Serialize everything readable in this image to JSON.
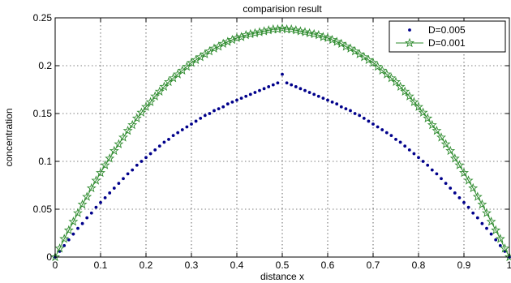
{
  "chart_data": {
    "type": "line",
    "title": "comparision result",
    "xlabel": "distance x",
    "ylabel": "concentration",
    "xlim": [
      0,
      1
    ],
    "ylim": [
      0,
      0.25
    ],
    "x_ticks": [
      "0",
      "0.1",
      "0.2",
      "0.3",
      "0.4",
      "0.5",
      "0.6",
      "0.7",
      "0.8",
      "0.9",
      "1"
    ],
    "y_ticks": [
      "0",
      "0.05",
      "0.1",
      "0.15",
      "0.2",
      "0.25"
    ],
    "grid": true,
    "legend_position": "top-right",
    "series": [
      {
        "name": "D=0.005",
        "color": "#00008b",
        "marker": "dot",
        "line": false,
        "x": [
          0,
          0.01,
          0.02,
          0.03,
          0.04,
          0.05,
          0.06,
          0.07,
          0.08,
          0.09,
          0.1,
          0.11,
          0.12,
          0.13,
          0.14,
          0.15,
          0.16,
          0.17,
          0.18,
          0.19,
          0.2,
          0.21,
          0.22,
          0.23,
          0.24,
          0.25,
          0.26,
          0.27,
          0.28,
          0.29,
          0.3,
          0.31,
          0.32,
          0.33,
          0.34,
          0.35,
          0.36,
          0.37,
          0.38,
          0.39,
          0.4,
          0.41,
          0.42,
          0.43,
          0.44,
          0.45,
          0.46,
          0.47,
          0.48,
          0.49,
          0.5,
          0.51,
          0.52,
          0.53,
          0.54,
          0.55,
          0.56,
          0.57,
          0.58,
          0.59,
          0.6,
          0.61,
          0.62,
          0.63,
          0.64,
          0.65,
          0.66,
          0.67,
          0.68,
          0.69,
          0.7,
          0.71,
          0.72,
          0.73,
          0.74,
          0.75,
          0.76,
          0.77,
          0.78,
          0.79,
          0.8,
          0.81,
          0.82,
          0.83,
          0.84,
          0.85,
          0.86,
          0.87,
          0.88,
          0.89,
          0.9,
          0.91,
          0.92,
          0.93,
          0.94,
          0.95,
          0.96,
          0.97,
          0.98,
          0.99,
          1
        ],
        "y": [
          0,
          0.006,
          0.012,
          0.018,
          0.024,
          0.03,
          0.035,
          0.041,
          0.046,
          0.052,
          0.057,
          0.062,
          0.067,
          0.072,
          0.077,
          0.082,
          0.087,
          0.091,
          0.096,
          0.1,
          0.104,
          0.108,
          0.112,
          0.116,
          0.12,
          0.123,
          0.127,
          0.13,
          0.133,
          0.136,
          0.139,
          0.142,
          0.145,
          0.148,
          0.15,
          0.153,
          0.155,
          0.157,
          0.16,
          0.162,
          0.164,
          0.166,
          0.168,
          0.17,
          0.172,
          0.174,
          0.176,
          0.178,
          0.18,
          0.182,
          0.191,
          0.182,
          0.18,
          0.178,
          0.176,
          0.174,
          0.172,
          0.17,
          0.168,
          0.166,
          0.164,
          0.162,
          0.16,
          0.157,
          0.155,
          0.153,
          0.15,
          0.148,
          0.145,
          0.142,
          0.139,
          0.136,
          0.133,
          0.13,
          0.127,
          0.123,
          0.12,
          0.116,
          0.112,
          0.108,
          0.104,
          0.1,
          0.096,
          0.091,
          0.087,
          0.082,
          0.077,
          0.072,
          0.067,
          0.062,
          0.057,
          0.052,
          0.046,
          0.041,
          0.035,
          0.03,
          0.024,
          0.018,
          0.012,
          0.006,
          0
        ]
      },
      {
        "name": "D=0.001",
        "color": "#2e8b2e",
        "marker": "star",
        "line": true,
        "x": [
          0,
          0.01,
          0.02,
          0.03,
          0.04,
          0.05,
          0.06,
          0.07,
          0.08,
          0.09,
          0.1,
          0.11,
          0.12,
          0.13,
          0.14,
          0.15,
          0.16,
          0.17,
          0.18,
          0.19,
          0.2,
          0.21,
          0.22,
          0.23,
          0.24,
          0.25,
          0.26,
          0.27,
          0.28,
          0.29,
          0.3,
          0.31,
          0.32,
          0.33,
          0.34,
          0.35,
          0.36,
          0.37,
          0.38,
          0.39,
          0.4,
          0.41,
          0.42,
          0.43,
          0.44,
          0.45,
          0.46,
          0.47,
          0.48,
          0.49,
          0.5,
          0.51,
          0.52,
          0.53,
          0.54,
          0.55,
          0.56,
          0.57,
          0.58,
          0.59,
          0.6,
          0.61,
          0.62,
          0.63,
          0.64,
          0.65,
          0.66,
          0.67,
          0.68,
          0.69,
          0.7,
          0.71,
          0.72,
          0.73,
          0.74,
          0.75,
          0.76,
          0.77,
          0.78,
          0.79,
          0.8,
          0.81,
          0.82,
          0.83,
          0.84,
          0.85,
          0.86,
          0.87,
          0.88,
          0.89,
          0.9,
          0.91,
          0.92,
          0.93,
          0.94,
          0.95,
          0.96,
          0.97,
          0.98,
          0.99,
          1
        ],
        "y": [
          0,
          0.009,
          0.019,
          0.028,
          0.037,
          0.046,
          0.055,
          0.063,
          0.072,
          0.08,
          0.088,
          0.096,
          0.103,
          0.111,
          0.118,
          0.125,
          0.132,
          0.138,
          0.145,
          0.151,
          0.157,
          0.162,
          0.168,
          0.173,
          0.178,
          0.183,
          0.187,
          0.191,
          0.195,
          0.199,
          0.203,
          0.206,
          0.209,
          0.212,
          0.215,
          0.218,
          0.22,
          0.223,
          0.225,
          0.227,
          0.229,
          0.23,
          0.232,
          0.233,
          0.234,
          0.235,
          0.236,
          0.237,
          0.238,
          0.238,
          0.239,
          0.238,
          0.238,
          0.237,
          0.236,
          0.235,
          0.234,
          0.233,
          0.232,
          0.23,
          0.229,
          0.227,
          0.225,
          0.223,
          0.22,
          0.218,
          0.215,
          0.212,
          0.209,
          0.206,
          0.203,
          0.199,
          0.195,
          0.191,
          0.187,
          0.183,
          0.178,
          0.173,
          0.168,
          0.162,
          0.157,
          0.151,
          0.145,
          0.138,
          0.132,
          0.125,
          0.118,
          0.111,
          0.103,
          0.096,
          0.088,
          0.08,
          0.072,
          0.063,
          0.055,
          0.046,
          0.037,
          0.028,
          0.019,
          0.009,
          0
        ]
      }
    ]
  }
}
